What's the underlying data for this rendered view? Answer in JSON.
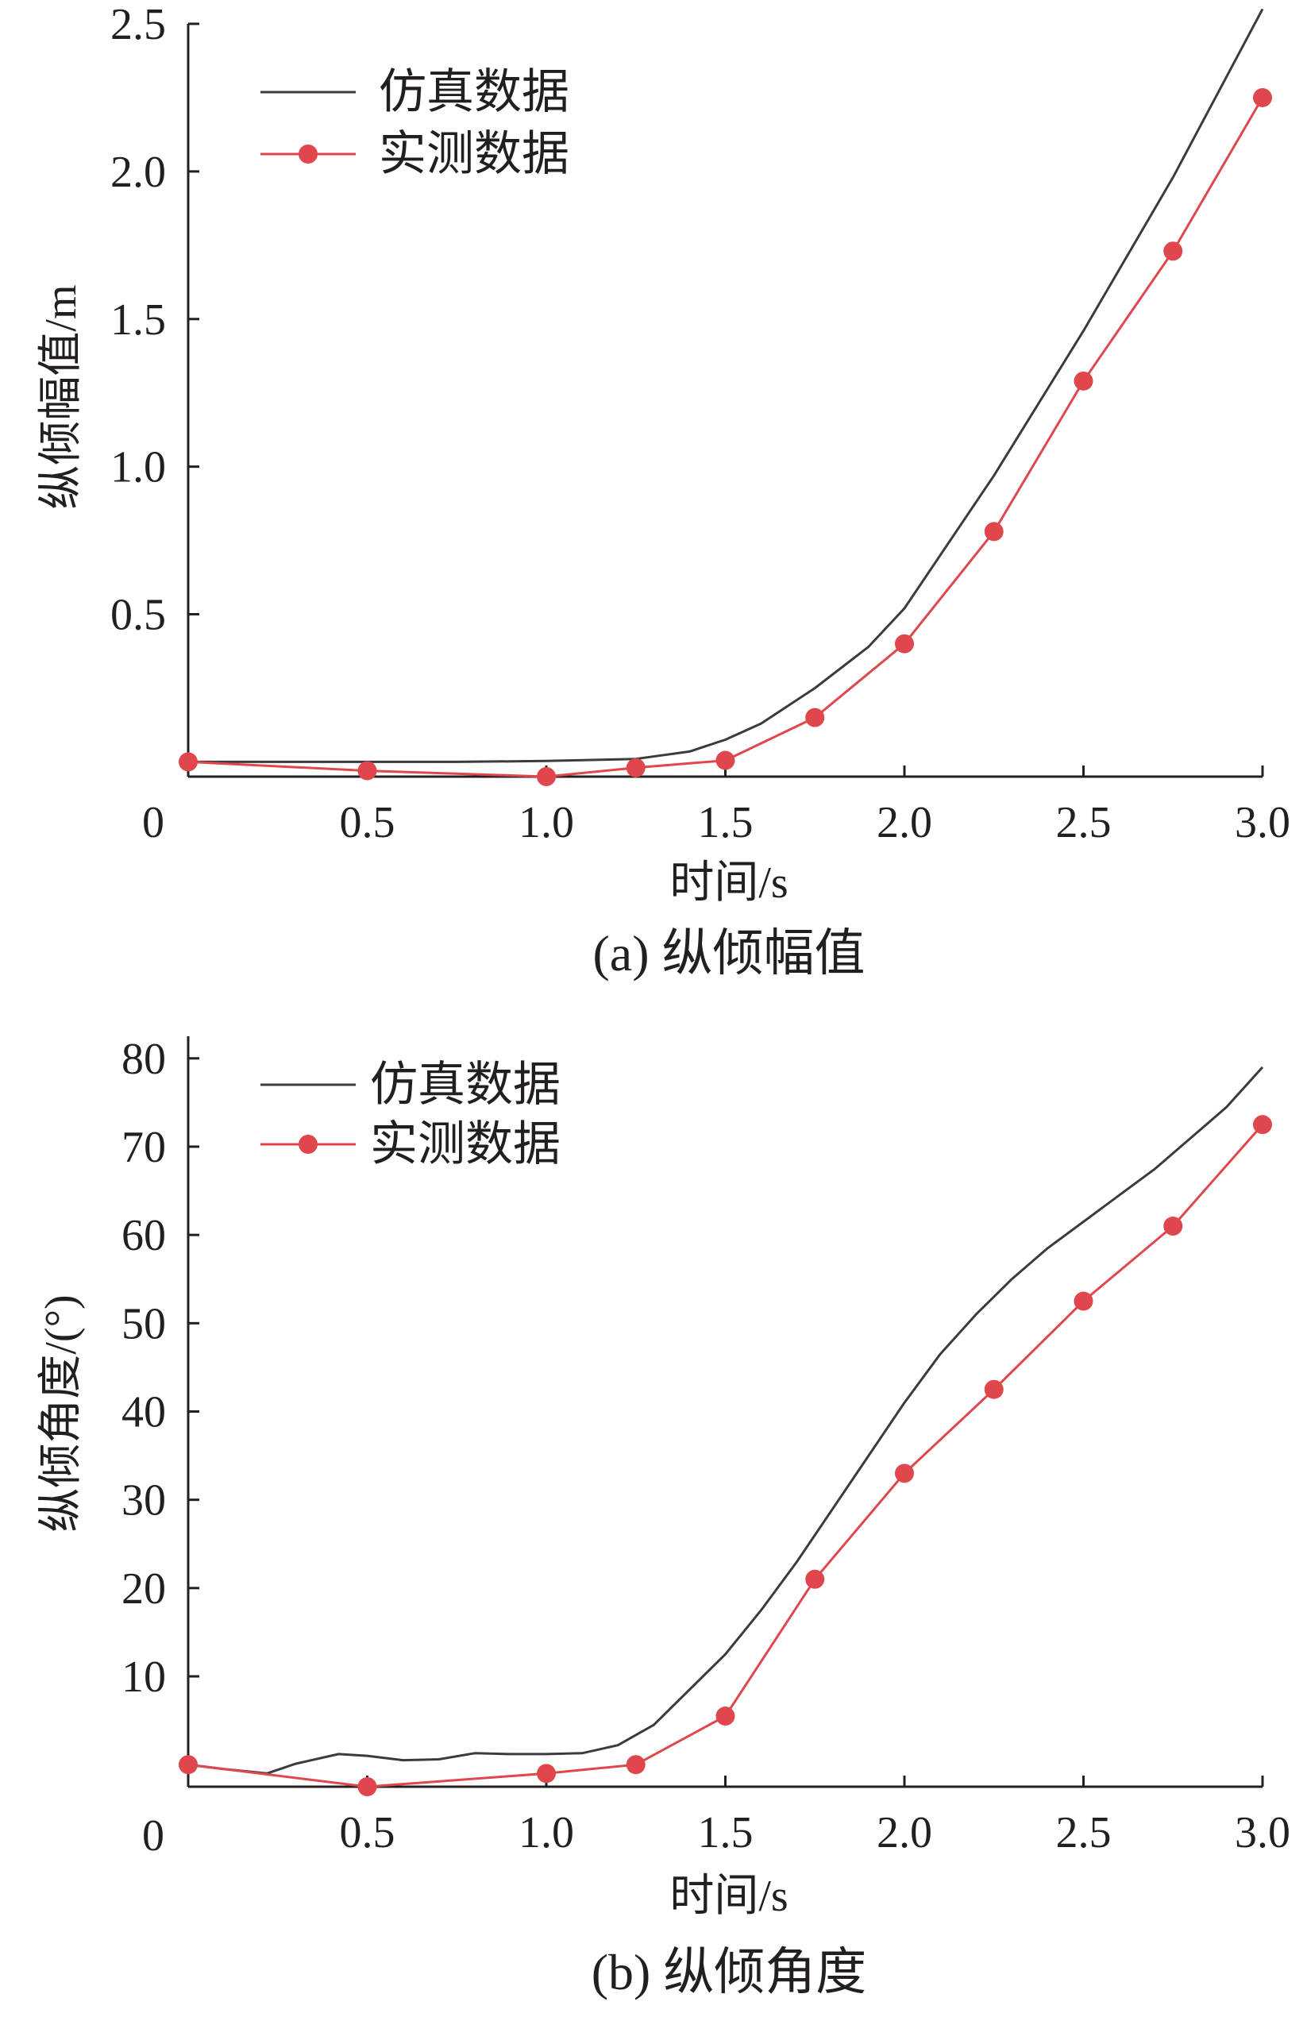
{
  "colors": {
    "sim": "#3d3a3b",
    "meas": "#e0474c",
    "axis": "#231f20",
    "text": "#231f20"
  },
  "chart_data": [
    {
      "type": "line",
      "caption": "(a)  纵倾幅值",
      "xlabel": "时间/s",
      "ylabel": "纵倾幅值/m",
      "xlim": [
        0,
        3.0
      ],
      "ylim": [
        -0.05,
        2.5
      ],
      "x_ticks": [
        0.5,
        1.0,
        1.5,
        2.0,
        2.5,
        3.0
      ],
      "x_tick_labels": [
        "0.5",
        "1.0",
        "1.5",
        "2.0",
        "2.5",
        "3.0"
      ],
      "y_ticks": [
        0.5,
        1.0,
        1.5,
        2.0,
        2.5
      ],
      "y_tick_labels": [
        "0.5",
        "1.0",
        "1.5",
        "2.0",
        "2.5"
      ],
      "origin_label": "0",
      "legend": {
        "position": "top-left"
      },
      "series": [
        {
          "name": "仿真数据",
          "style": "line",
          "x": [
            0,
            0.25,
            0.5,
            0.75,
            1.0,
            1.25,
            1.4,
            1.5,
            1.6,
            1.75,
            1.9,
            2.0,
            2.25,
            2.5,
            2.75,
            3.0
          ],
          "y": [
            0.0,
            0.0,
            0.0,
            0.0,
            0.003,
            0.01,
            0.035,
            0.075,
            0.13,
            0.25,
            0.39,
            0.52,
            0.97,
            1.46,
            1.98,
            2.55
          ]
        },
        {
          "name": "实测数据",
          "style": "line-marker",
          "x": [
            0,
            0.5,
            1.0,
            1.25,
            1.5,
            1.75,
            2.0,
            2.25,
            2.5,
            2.75,
            3.0
          ],
          "y": [
            0.0,
            -0.03,
            -0.05,
            -0.02,
            0.005,
            0.15,
            0.4,
            0.78,
            1.29,
            1.73,
            2.25
          ]
        }
      ]
    },
    {
      "type": "line",
      "caption": "(b)  纵倾角度",
      "xlabel": "时间/s",
      "ylabel": "纵倾角度/(°)",
      "xlim": [
        0,
        3.0
      ],
      "ylim": [
        -2.5,
        82.5
      ],
      "x_ticks": [
        0.5,
        1.0,
        1.5,
        2.0,
        2.5,
        3.0
      ],
      "x_tick_labels": [
        "0.5",
        "1.0",
        "1.5",
        "2.0",
        "2.5",
        "3.0"
      ],
      "y_ticks": [
        10,
        20,
        30,
        40,
        50,
        60,
        70,
        80
      ],
      "y_tick_labels": [
        "10",
        "20",
        "30",
        "40",
        "50",
        "60",
        "70",
        "80"
      ],
      "origin_label": "0",
      "legend": {
        "position": "top-left"
      },
      "series": [
        {
          "name": "仿真数据",
          "style": "line",
          "x": [
            0,
            0.1,
            0.22,
            0.3,
            0.42,
            0.5,
            0.6,
            0.7,
            0.8,
            0.9,
            1.0,
            1.1,
            1.2,
            1.3,
            1.4,
            1.5,
            1.6,
            1.7,
            1.8,
            1.9,
            2.0,
            2.1,
            2.2,
            2.3,
            2.4,
            2.5,
            2.6,
            2.7,
            2.8,
            2.9,
            3.0
          ],
          "y": [
            0.0,
            -0.5,
            -1.0,
            0.1,
            1.2,
            1.0,
            0.5,
            0.6,
            1.3,
            1.2,
            1.2,
            1.3,
            2.2,
            4.5,
            8.5,
            12.5,
            17.5,
            23.0,
            29.0,
            35.0,
            41.0,
            46.5,
            51.0,
            55.0,
            58.5,
            61.5,
            64.5,
            67.5,
            71.0,
            74.5,
            79.0
          ]
        },
        {
          "name": "实测数据",
          "style": "line-marker",
          "x": [
            0,
            0.5,
            1.0,
            1.25,
            1.5,
            1.75,
            2.0,
            2.25,
            2.5,
            2.75,
            3.0
          ],
          "y": [
            0.0,
            -2.5,
            -1.0,
            0.0,
            5.5,
            21.0,
            33.0,
            42.5,
            52.5,
            61.0,
            72.5
          ]
        }
      ]
    }
  ]
}
